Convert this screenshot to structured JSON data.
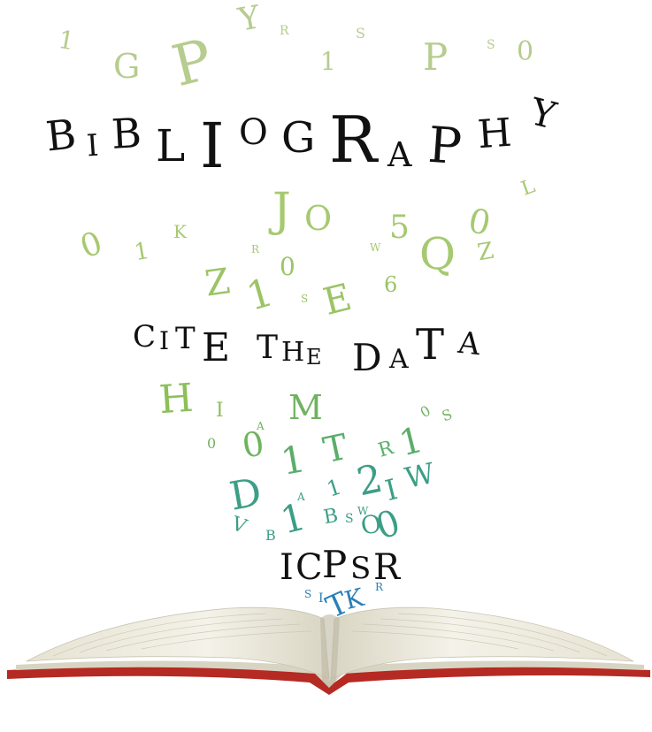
{
  "heading": {
    "word": "BIBLIOGRAPHY",
    "letters": [
      "B",
      "I",
      "B",
      "L",
      "I",
      "O",
      "G",
      "R",
      "A",
      "P",
      "H",
      "Y"
    ]
  },
  "subheading": {
    "phrase": "CITE THE DATA",
    "letters": [
      "C",
      "I",
      "T",
      "E",
      "T",
      "H",
      "E",
      "D",
      "A",
      "T",
      "A"
    ]
  },
  "brand": {
    "name": "ICPSR",
    "letters": [
      "I",
      "C",
      "P",
      "S",
      "R"
    ]
  },
  "scattered_letters": [
    "1",
    "G",
    "P",
    "Y",
    "R",
    "1",
    "S",
    "P",
    "S",
    "0",
    "0",
    "1",
    "K",
    "J",
    "O",
    "R",
    "5",
    "Q",
    "0",
    "Z",
    "L",
    "W",
    "Z",
    "1",
    "0",
    "S",
    "E",
    "6",
    "H",
    "I",
    "M",
    "0",
    "A",
    "0",
    "0",
    "S",
    "1",
    "T",
    "R",
    "1",
    "D",
    "1",
    "2",
    "I",
    "W",
    "V",
    "A",
    "B",
    "1",
    "B",
    "S",
    "W",
    "O",
    "0",
    "S",
    "I",
    "T",
    "K",
    "R"
  ],
  "colors": {
    "title_text": "#111111",
    "light_green": "#b7cc8f",
    "green": "#8cbf5a",
    "teal": "#3c9e86",
    "blue": "#2a7fb6",
    "book_cover_red": "#b52a22",
    "page_cream": "#f1efe4",
    "page_shadow": "#d8d4c3"
  }
}
